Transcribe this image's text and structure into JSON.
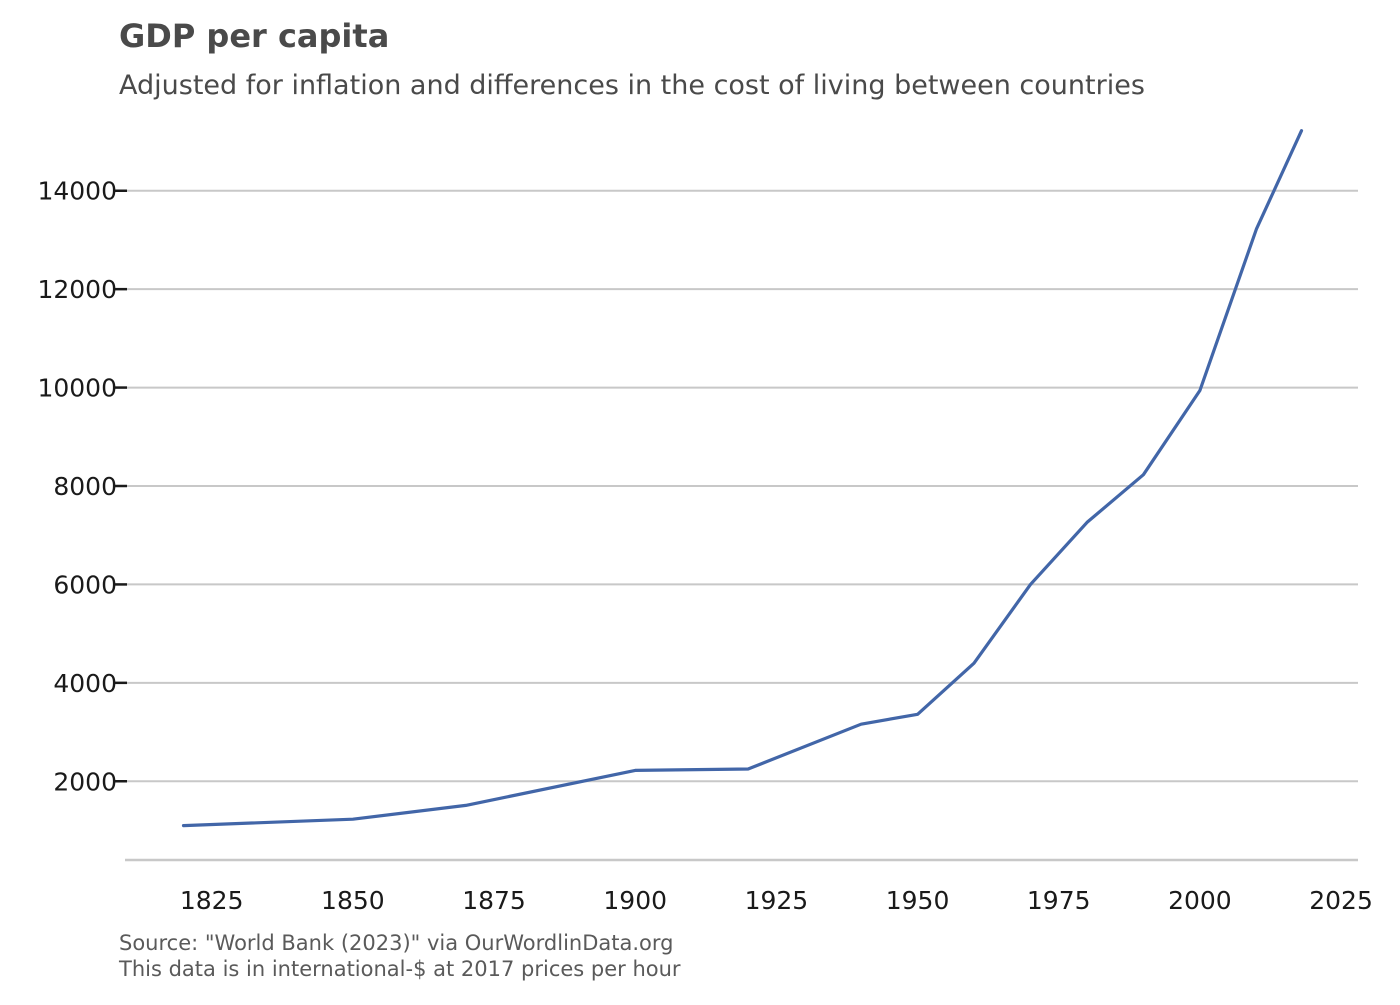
{
  "chart_data": {
    "type": "line",
    "title": "GDP per capita",
    "subtitle": "Adjusted for inflation and differences in the cost of living between countries",
    "xlabel": "",
    "ylabel": "",
    "x_ticks": [
      1825,
      1850,
      1875,
      1900,
      1925,
      1950,
      1975,
      2000,
      2025
    ],
    "y_ticks": [
      2000,
      4000,
      6000,
      8000,
      10000,
      12000,
      14000
    ],
    "xlim": [
      1810,
      2028
    ],
    "ylim": [
      400,
      15600
    ],
    "grid": "horizontal",
    "legend": "none",
    "series": [
      {
        "name": "GDP per capita",
        "color": "#4266a8",
        "x": [
          1820,
          1850,
          1870,
          1900,
          1920,
          1940,
          1950,
          1960,
          1970,
          1980,
          1990,
          2000,
          2010,
          2018
        ],
        "values": [
          1100,
          1230,
          1510,
          2220,
          2250,
          3160,
          3360,
          4400,
          6000,
          7260,
          8230,
          9940,
          13220,
          15220
        ]
      }
    ],
    "footer": [
      "Source: \"World Bank (2023)\" via OurWordlinData.org",
      "This data is in international-$ at 2017 prices per hour"
    ]
  }
}
